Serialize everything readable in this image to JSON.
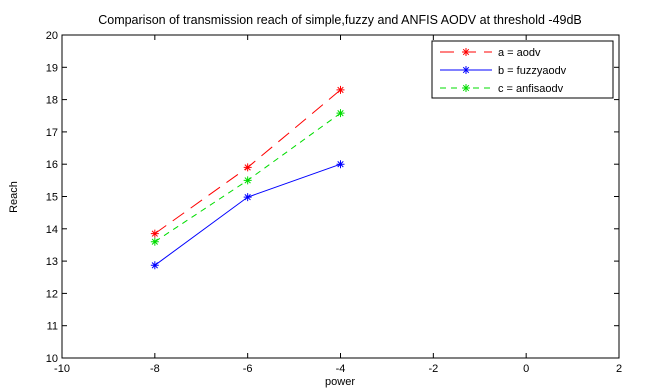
{
  "chart_data": {
    "type": "line",
    "title": "Comparison of transmission reach of simple,fuzzy and ANFIS AODV at threshold -49dB",
    "xlabel": "power",
    "ylabel": "Reach",
    "xlim": [
      -10,
      2
    ],
    "ylim": [
      10,
      20
    ],
    "xticks": [
      -10,
      -8,
      -6,
      -4,
      -2,
      0,
      2
    ],
    "yticks": [
      10,
      11,
      12,
      13,
      14,
      15,
      16,
      17,
      18,
      19,
      20
    ],
    "grid": false,
    "legend_position": "top-right",
    "series": [
      {
        "name": "a = aodv",
        "color": "#ff0000",
        "dash": "long-dash",
        "x": [
          -8,
          -6,
          -4
        ],
        "y": [
          13.85,
          15.9,
          18.3
        ]
      },
      {
        "name": "b = fuzzyaodv",
        "color": "#0000ff",
        "dash": "solid",
        "x": [
          -8,
          -6,
          -4
        ],
        "y": [
          12.87,
          14.98,
          16.0
        ]
      },
      {
        "name": "c = anfisaodv",
        "color": "#00dd00",
        "dash": "short-dash",
        "x": [
          -8,
          -6,
          -4
        ],
        "y": [
          13.6,
          15.5,
          17.58
        ]
      }
    ]
  }
}
